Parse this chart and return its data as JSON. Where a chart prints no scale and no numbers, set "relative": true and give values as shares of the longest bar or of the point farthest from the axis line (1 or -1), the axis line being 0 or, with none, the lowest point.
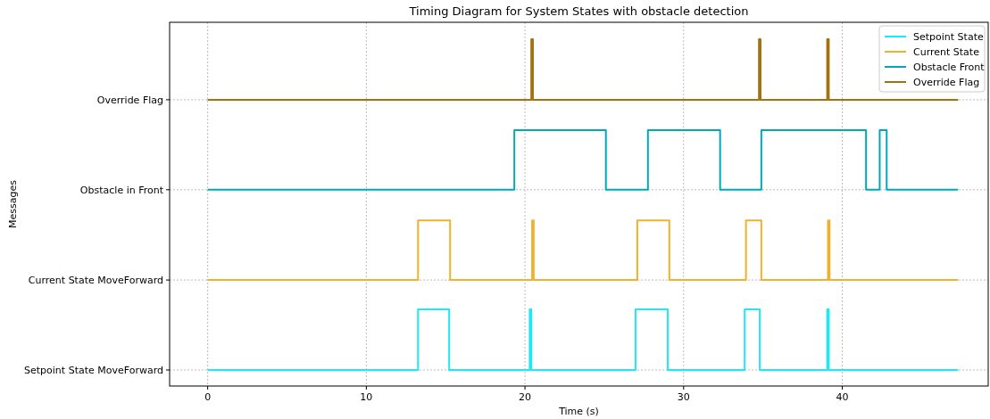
{
  "chart_data": {
    "type": "step",
    "title": "Timing Diagram for System States with obstacle detection",
    "xlabel": "Time (s)",
    "xlim": [
      -2.4,
      49.2
    ],
    "xticks": [
      0,
      10,
      20,
      30,
      40
    ],
    "relative": true,
    "annotations": [
      "Setpoint State MoveForward",
      "Current State MoveForward",
      "Obstacle in Front",
      "Override Flag",
      "Messages"
    ],
    "grid": true,
    "legend": "top right",
    "line_style": "solid",
    "marker": "none",
    "series": [
      {
        "name": "Setpoint State",
        "color": "#1ee8f8",
        "x": [
          0,
          13.26,
          15.22,
          20.3,
          20.4,
          26.97,
          29.0,
          33.85,
          34.8,
          39.05,
          39.15,
          47.3
        ],
        "values": [
          0,
          0.183,
          0,
          0.183,
          0,
          0.183,
          0,
          0.183,
          0,
          0.183,
          0,
          0
        ]
      },
      {
        "name": "Current State",
        "color": "#f0b12d",
        "x": [
          0,
          13.26,
          15.28,
          20.45,
          20.55,
          27.08,
          29.1,
          33.93,
          34.9,
          39.1,
          39.2,
          47.3
        ],
        "values": [
          0.272,
          0.452,
          0.272,
          0.452,
          0.272,
          0.452,
          0.272,
          0.452,
          0.272,
          0.452,
          0.272,
          0.272
        ]
      },
      {
        "name": "Obstacle Front",
        "color": "#00a9b8",
        "x": [
          0,
          19.33,
          25.1,
          27.75,
          32.3,
          34.9,
          41.5,
          42.36,
          42.8,
          47.3
        ],
        "values": [
          0.545,
          0.725,
          0.545,
          0.725,
          0.545,
          0.725,
          0.545,
          0.725,
          0.545,
          0.545
        ]
      },
      {
        "name": "Override Flag",
        "color": "#a2720f",
        "x": [
          0,
          20.4,
          20.5,
          34.75,
          34.85,
          39.05,
          39.15,
          47.3
        ],
        "values": [
          0.817,
          1,
          0.817,
          1,
          0.817,
          1,
          0.817,
          0.817
        ]
      }
    ]
  }
}
